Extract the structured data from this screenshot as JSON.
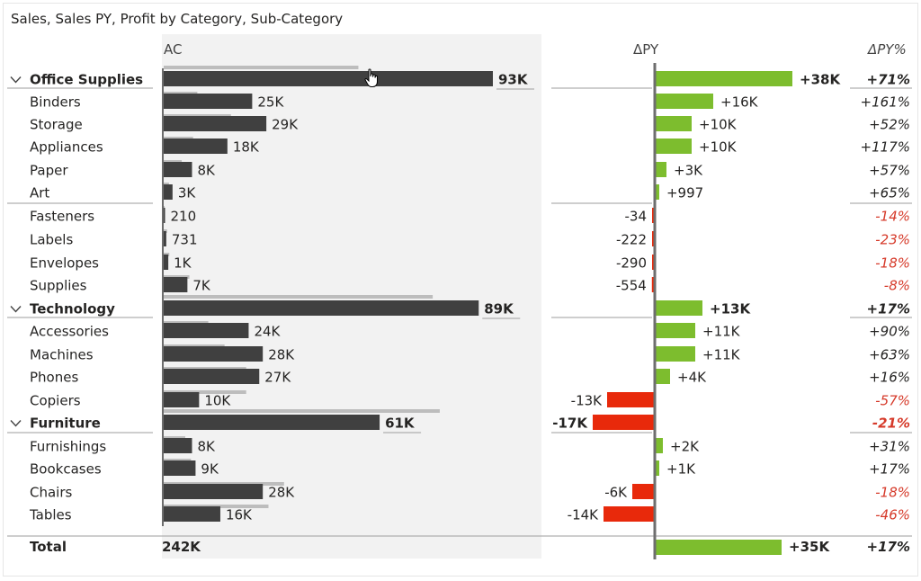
{
  "title": "Sales, Sales PY, Profit by Category, Sub-Category",
  "headers": {
    "ac": "AC",
    "dpy": "ΔPY",
    "dpy_pct": "ΔPY%"
  },
  "colors": {
    "ac_bar": "#404040",
    "py_bar": "#bdbdbd",
    "positive": "#7dbd2e",
    "negative": "#e8290b",
    "negative_text": "#d63a2a",
    "axis": "#6e6e6e",
    "panel_bg": "#f2f2f2"
  },
  "chart_data": {
    "type": "bar",
    "variant": "variance (actual vs previous year) by category and sub-category",
    "title": "Sales, Sales PY, Profit by Category, Sub-Category",
    "columns": [
      "AC",
      "ΔPY",
      "ΔPY%"
    ],
    "rows": [
      {
        "label": "Office Supplies",
        "level": "category",
        "expanded": true,
        "ac": 93000,
        "py": 55000,
        "ac_label": "93K",
        "dpy": 38000,
        "dpy_label": "+38K",
        "pct_label": "+71%"
      },
      {
        "label": "Binders",
        "level": "sub",
        "ac": 25000,
        "py": 9500,
        "ac_label": "25K",
        "dpy": 16000,
        "dpy_label": "+16K",
        "pct_label": "+161%"
      },
      {
        "label": "Storage",
        "level": "sub",
        "ac": 29000,
        "py": 19000,
        "ac_label": "29K",
        "dpy": 10000,
        "dpy_label": "+10K",
        "pct_label": "+52%"
      },
      {
        "label": "Appliances",
        "level": "sub",
        "ac": 18000,
        "py": 8300,
        "ac_label": "18K",
        "dpy": 10000,
        "dpy_label": "+10K",
        "pct_label": "+117%"
      },
      {
        "label": "Paper",
        "level": "sub",
        "ac": 8000,
        "py": 5100,
        "ac_label": "8K",
        "dpy": 3000,
        "dpy_label": "+3K",
        "pct_label": "+57%"
      },
      {
        "label": "Art",
        "level": "sub",
        "ac": 2500,
        "py": 1500,
        "ac_label": "3K",
        "dpy": 997,
        "dpy_label": "+997",
        "pct_label": "+65%"
      },
      {
        "label": "Fasteners",
        "level": "sub",
        "ac": 210,
        "py": 244,
        "ac_label": "210",
        "dpy": -34,
        "dpy_label": "-34",
        "pct_label": "-14%"
      },
      {
        "label": "Labels",
        "level": "sub",
        "ac": 731,
        "py": 953,
        "ac_label": "731",
        "dpy": -222,
        "dpy_label": "-222",
        "pct_label": "-23%"
      },
      {
        "label": "Envelopes",
        "level": "sub",
        "ac": 1300,
        "py": 1590,
        "ac_label": "1K",
        "dpy": -290,
        "dpy_label": "-290",
        "pct_label": "-18%"
      },
      {
        "label": "Supplies",
        "level": "sub",
        "ac": 6700,
        "py": 7250,
        "ac_label": "7K",
        "dpy": -554,
        "dpy_label": "-554",
        "pct_label": "-8%"
      },
      {
        "label": "Technology",
        "level": "category",
        "expanded": true,
        "ac": 89000,
        "py": 76000,
        "ac_label": "89K",
        "dpy": 13000,
        "dpy_label": "+13K",
        "pct_label": "+17%"
      },
      {
        "label": "Accessories",
        "level": "sub",
        "ac": 24000,
        "py": 12600,
        "ac_label": "24K",
        "dpy": 11000,
        "dpy_label": "+11K",
        "pct_label": "+90%"
      },
      {
        "label": "Machines",
        "level": "sub",
        "ac": 28000,
        "py": 17200,
        "ac_label": "28K",
        "dpy": 11000,
        "dpy_label": "+11K",
        "pct_label": "+63%"
      },
      {
        "label": "Phones",
        "level": "sub",
        "ac": 27000,
        "py": 23300,
        "ac_label": "27K",
        "dpy": 4000,
        "dpy_label": "+4K",
        "pct_label": "+16%"
      },
      {
        "label": "Copiers",
        "level": "sub",
        "ac": 10000,
        "py": 23300,
        "ac_label": "10K",
        "dpy": -13000,
        "dpy_label": "-13K",
        "pct_label": "-57%"
      },
      {
        "label": "Furniture",
        "level": "category",
        "expanded": true,
        "ac": 61000,
        "py": 78000,
        "ac_label": "61K",
        "dpy": -17000,
        "dpy_label": "-17K",
        "pct_label": "-21%"
      },
      {
        "label": "Furnishings",
        "level": "sub",
        "ac": 8000,
        "py": 6100,
        "ac_label": "8K",
        "dpy": 2000,
        "dpy_label": "+2K",
        "pct_label": "+31%"
      },
      {
        "label": "Bookcases",
        "level": "sub",
        "ac": 9000,
        "py": 7700,
        "ac_label": "9K",
        "dpy": 1000,
        "dpy_label": "+1K",
        "pct_label": "+17%"
      },
      {
        "label": "Chairs",
        "level": "sub",
        "ac": 28000,
        "py": 34000,
        "ac_label": "28K",
        "dpy": -6000,
        "dpy_label": "-6K",
        "pct_label": "-18%"
      },
      {
        "label": "Tables",
        "level": "sub",
        "ac": 16000,
        "py": 29600,
        "ac_label": "16K",
        "dpy": -14000,
        "dpy_label": "-14K",
        "pct_label": "-46%"
      }
    ],
    "total": {
      "label": "Total",
      "ac_label": "242K",
      "dpy": 35000,
      "dpy_label": "+35K",
      "pct_label": "+17%"
    }
  }
}
